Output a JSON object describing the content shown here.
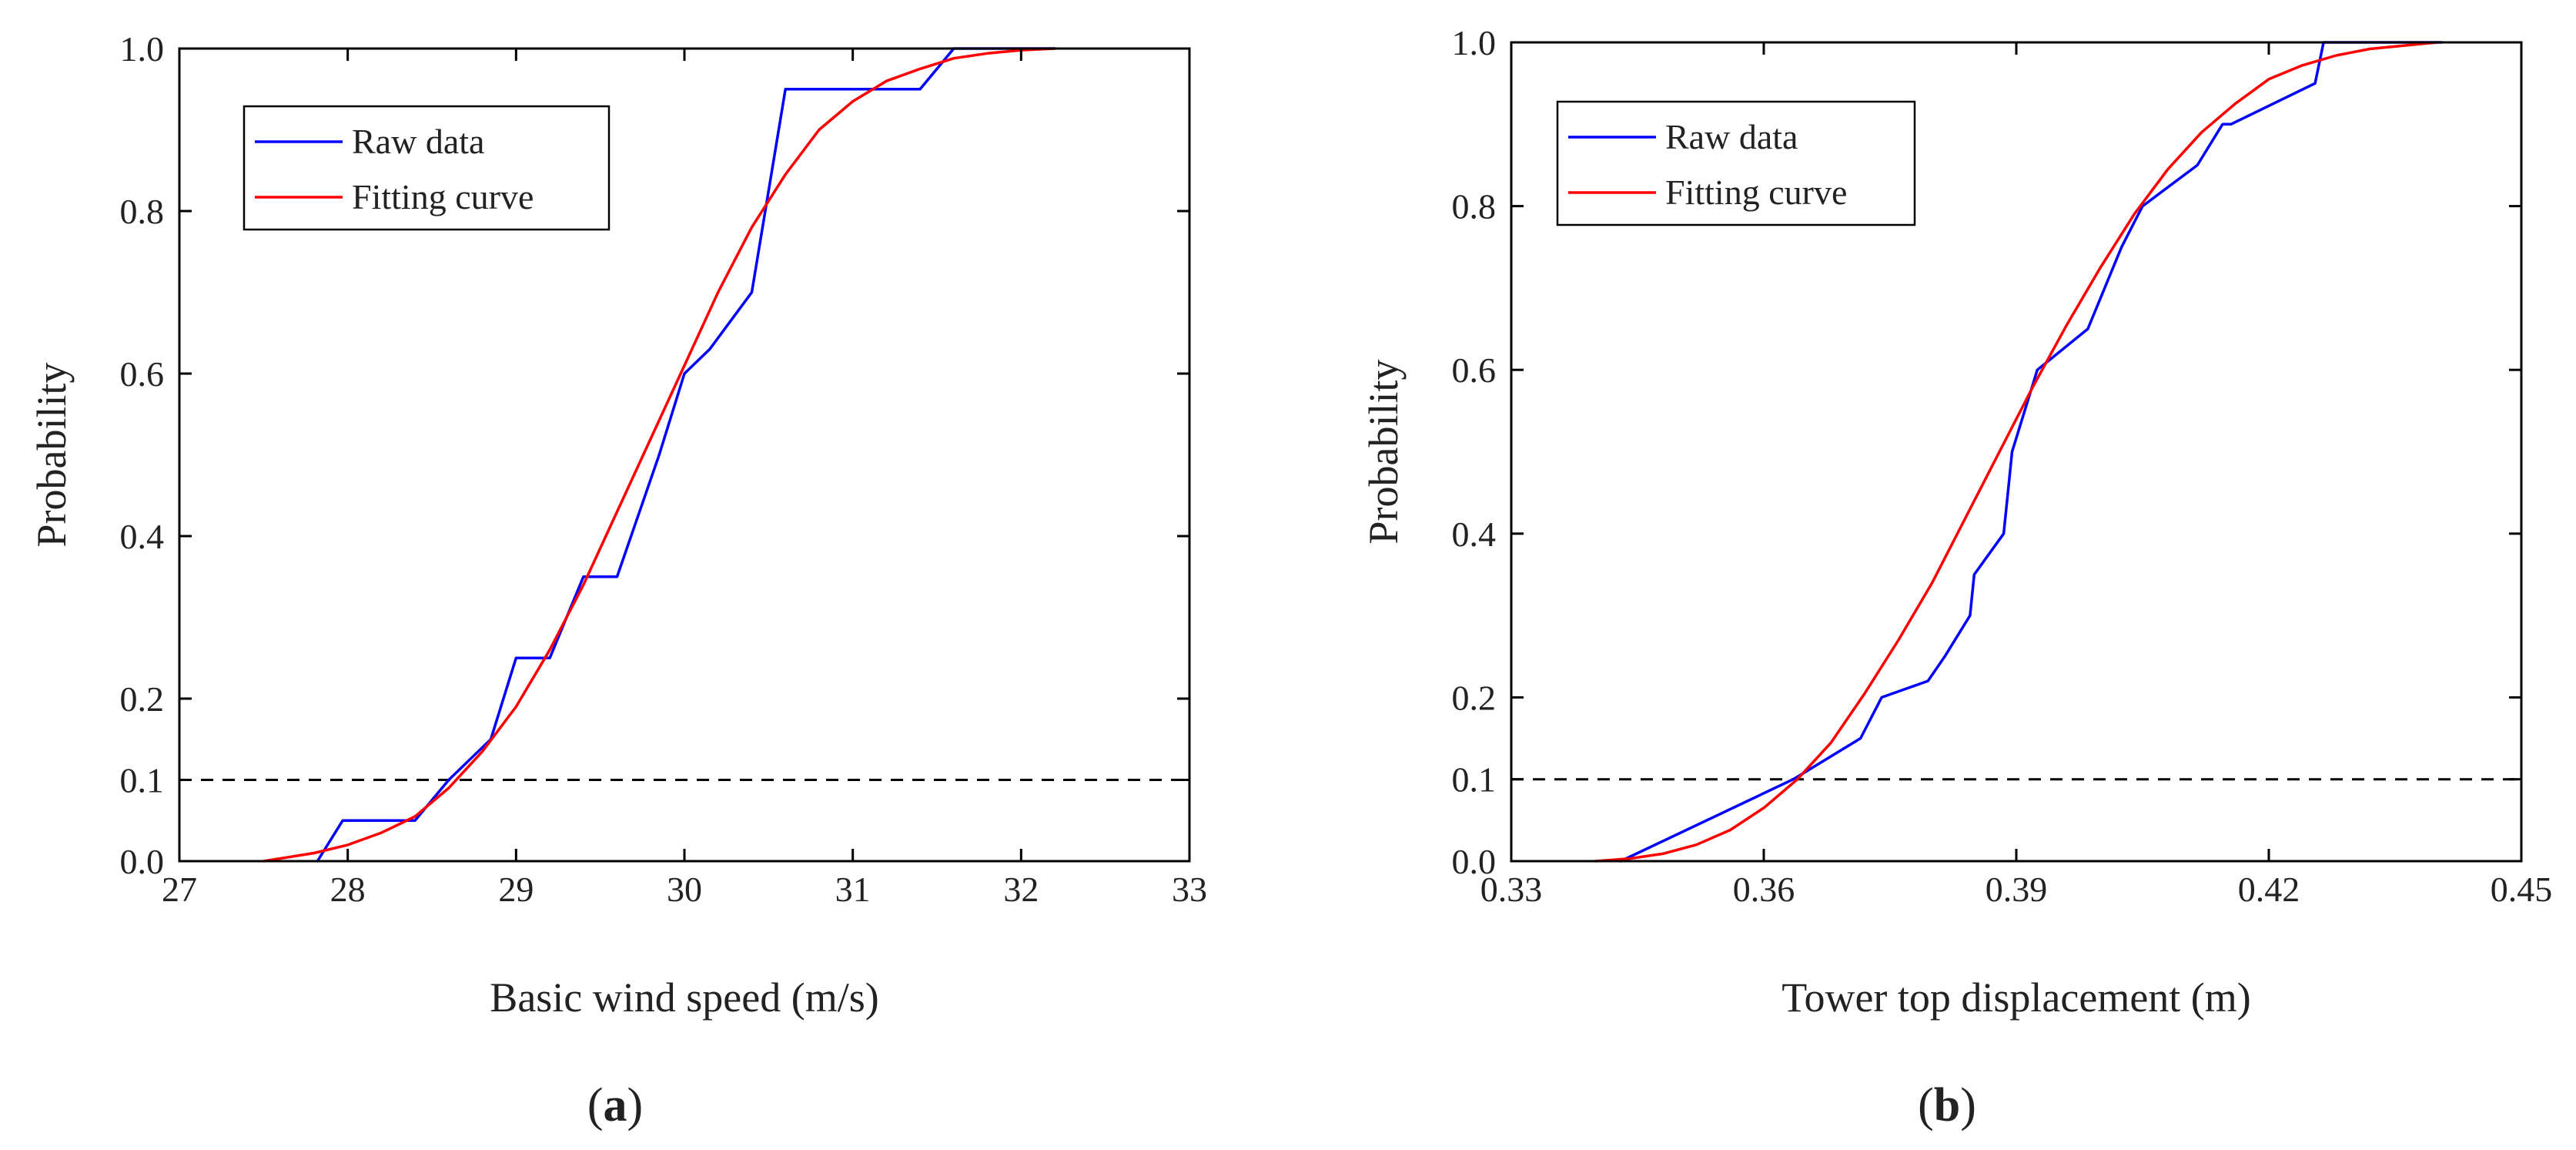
{
  "chart_data": [
    {
      "type": "line",
      "caption": {
        "open": "(",
        "letter": "a",
        "close": ")"
      },
      "xlabel": "Basic wind speed (m/s)",
      "ylabel": "Probability",
      "xlim": [
        27,
        33
      ],
      "ylim": [
        0,
        1
      ],
      "xticks": [
        27,
        28,
        29,
        30,
        31,
        32,
        33
      ],
      "xtick_labels": [
        "27",
        "28",
        "29",
        "30",
        "31",
        "32",
        "33"
      ],
      "yticks": [
        0,
        0.1,
        0.2,
        0.4,
        0.6,
        0.8,
        1.0
      ],
      "ytick_labels": [
        "0.0",
        "0.1",
        "0.2",
        "0.4",
        "0.6",
        "0.8",
        "1.0"
      ],
      "reference_line": {
        "y": 0.1,
        "style": "dashed",
        "color": "#000000"
      },
      "legend": {
        "position": "top-left"
      },
      "series": [
        {
          "name": "Raw data",
          "color": "#0000ff",
          "x": [
            27.82,
            27.97,
            28.4,
            28.6,
            28.85,
            29.0,
            29.2,
            29.4,
            29.6,
            29.85,
            30.0,
            30.15,
            30.4,
            30.6,
            31.4,
            31.6,
            32.2
          ],
          "y": [
            0.0,
            0.05,
            0.05,
            0.1,
            0.15,
            0.25,
            0.25,
            0.35,
            0.35,
            0.5,
            0.6,
            0.63,
            0.7,
            0.95,
            0.95,
            1.0,
            1.0
          ]
        },
        {
          "name": "Fitting curve",
          "color": "#ff0000",
          "x": [
            27.5,
            27.8,
            28.0,
            28.2,
            28.4,
            28.6,
            28.8,
            29.0,
            29.2,
            29.4,
            29.6,
            29.8,
            30.0,
            30.2,
            30.4,
            30.6,
            30.8,
            31.0,
            31.2,
            31.4,
            31.6,
            31.8,
            32.0,
            32.2
          ],
          "y": [
            0.0,
            0.01,
            0.02,
            0.035,
            0.055,
            0.09,
            0.135,
            0.19,
            0.26,
            0.34,
            0.43,
            0.52,
            0.61,
            0.7,
            0.78,
            0.845,
            0.9,
            0.935,
            0.96,
            0.975,
            0.988,
            0.994,
            0.998,
            1.0
          ]
        }
      ]
    },
    {
      "type": "line",
      "caption": {
        "open": "(",
        "letter": "b",
        "close": ")"
      },
      "xlabel": "Tower top displacement (m)",
      "ylabel": "Probability",
      "xlim": [
        0.33,
        0.45
      ],
      "ylim": [
        0,
        1
      ],
      "xticks": [
        0.33,
        0.36,
        0.39,
        0.42,
        0.45
      ],
      "xtick_labels": [
        "0.33",
        "0.36",
        "0.39",
        "0.42",
        "0.45"
      ],
      "yticks": [
        0,
        0.1,
        0.2,
        0.4,
        0.6,
        0.8,
        1.0
      ],
      "ytick_labels": [
        "0.0",
        "0.1",
        "0.2",
        "0.4",
        "0.6",
        "0.8",
        "1.0"
      ],
      "reference_line": {
        "y": 0.1,
        "style": "dashed",
        "color": "#000000"
      },
      "legend": {
        "position": "top-left"
      },
      "series": [
        {
          "name": "Raw data",
          "color": "#0000ff",
          "x": [
            0.343,
            0.3635,
            0.3715,
            0.374,
            0.3795,
            0.3815,
            0.3845,
            0.385,
            0.3885,
            0.389,
            0.3895,
            0.3925,
            0.3985,
            0.4025,
            0.405,
            0.4115,
            0.4145,
            0.4155,
            0.4255,
            0.4265,
            0.4405
          ],
          "y": [
            0.0,
            0.1,
            0.15,
            0.2,
            0.22,
            0.25,
            0.3,
            0.35,
            0.4,
            0.45,
            0.5,
            0.6,
            0.65,
            0.75,
            0.8,
            0.85,
            0.9,
            0.9,
            0.95,
            1.0,
            1.0
          ]
        },
        {
          "name": "Fitting curve",
          "color": "#ff0000",
          "x": [
            0.34,
            0.344,
            0.348,
            0.352,
            0.356,
            0.36,
            0.364,
            0.368,
            0.372,
            0.376,
            0.38,
            0.384,
            0.388,
            0.392,
            0.396,
            0.4,
            0.404,
            0.408,
            0.412,
            0.416,
            0.42,
            0.424,
            0.428,
            0.432,
            0.436,
            0.44
          ],
          "y": [
            0.0,
            0.003,
            0.009,
            0.02,
            0.038,
            0.065,
            0.1,
            0.145,
            0.205,
            0.27,
            0.34,
            0.42,
            0.5,
            0.58,
            0.655,
            0.725,
            0.79,
            0.845,
            0.89,
            0.925,
            0.955,
            0.972,
            0.984,
            0.992,
            0.996,
            1.0
          ]
        }
      ]
    }
  ]
}
